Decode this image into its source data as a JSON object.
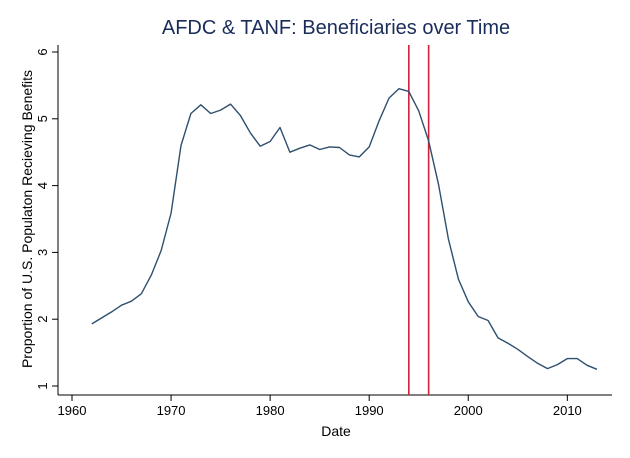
{
  "chart_data": {
    "type": "line",
    "title": "AFDC & TANF: Beneficiaries over Time",
    "xlabel": "Date",
    "ylabel": "Proportion of U.S. Populaton Recieving Benefits",
    "xlim": [
      1960,
      2013
    ],
    "ylim": [
      1,
      6
    ],
    "xticks": [
      1960,
      1970,
      1980,
      1990,
      2000,
      2010
    ],
    "yticks": [
      1,
      2,
      3,
      4,
      5,
      6
    ],
    "grid": false,
    "series": [
      {
        "color": "#2e4f6e",
        "x": [
          1962,
          1963,
          1964,
          1965,
          1966,
          1967,
          1968,
          1969,
          1970,
          1971,
          1972,
          1973,
          1974,
          1975,
          1976,
          1977,
          1978,
          1979,
          1980,
          1981,
          1982,
          1983,
          1984,
          1985,
          1986,
          1987,
          1988,
          1989,
          1990,
          1991,
          1992,
          1993,
          1994,
          1995,
          1996,
          1997,
          1998,
          1999,
          2000,
          2001,
          2002,
          2003,
          2004,
          2005,
          2006,
          2007,
          2008,
          2009,
          2010,
          2011,
          2012,
          2013
        ],
        "y": [
          1.93,
          2.02,
          2.11,
          2.21,
          2.27,
          2.38,
          2.66,
          3.03,
          3.59,
          4.6,
          5.08,
          5.21,
          5.08,
          5.13,
          5.22,
          5.05,
          4.79,
          4.59,
          4.66,
          4.87,
          4.5,
          4.56,
          4.61,
          4.54,
          4.58,
          4.57,
          4.46,
          4.43,
          4.58,
          4.97,
          5.31,
          5.45,
          5.41,
          5.12,
          4.67,
          4.02,
          3.2,
          2.6,
          2.26,
          2.04,
          1.98,
          1.72,
          1.64,
          1.55,
          1.44,
          1.34,
          1.26,
          1.32,
          1.41,
          1.41,
          1.31,
          1.25
        ]
      }
    ],
    "reference_lines": [
      {
        "x": 1994,
        "color": "#d21f3c"
      },
      {
        "x": 1996,
        "color": "#d21f3c"
      }
    ],
    "axis_color": "#000000"
  }
}
